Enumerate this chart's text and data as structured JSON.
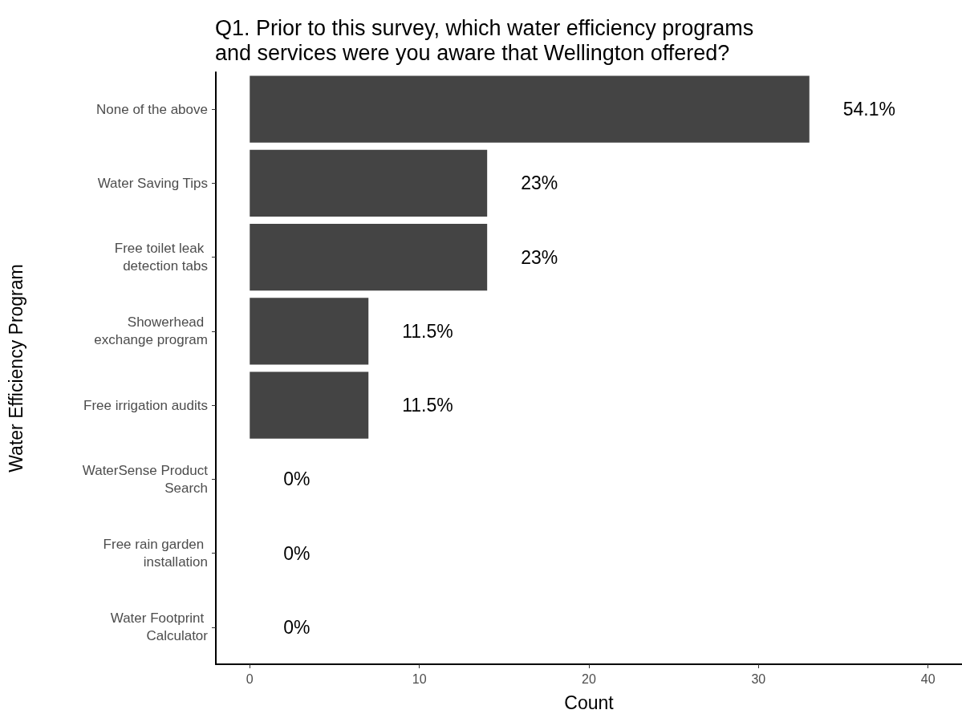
{
  "chart_data": {
    "type": "bar",
    "orientation": "horizontal",
    "title": "Q1. Prior to this survey, which water efficiency programs and services were you aware that Wellington offered?",
    "xlabel": "Count",
    "ylabel": "Water Efficiency Program",
    "categories": [
      "None of the above",
      "Water Saving Tips",
      "Free toilet leak detection tabs",
      "Showerhead exchange program",
      "Free irrigation audits",
      "WaterSense Product Search",
      "Free rain garden installation",
      "Water Footprint Calculator"
    ],
    "values": [
      33,
      14,
      14,
      7,
      7,
      0,
      0,
      0
    ],
    "annotations": [
      {
        "text": "54.1%",
        "x": 33,
        "y": "None of the above"
      },
      {
        "text": "23%",
        "x": 14,
        "y": "Water Saving Tips"
      },
      {
        "text": "23%",
        "x": 14,
        "y": "Free toilet leak detection tabs"
      },
      {
        "text": "11.5%",
        "x": 7,
        "y": "Showerhead exchange program"
      },
      {
        "text": "11.5%",
        "x": 7,
        "y": "Free irrigation audits"
      },
      {
        "text": "0%",
        "x": 0,
        "y": "WaterSense Product Search"
      },
      {
        "text": "0%",
        "x": 0,
        "y": "Free rain garden installation"
      },
      {
        "text": "0%",
        "x": 0,
        "y": "Water Footprint Calculator"
      }
    ],
    "color": "#444444",
    "xlim": [
      -2,
      42
    ],
    "xticks": [
      0,
      10,
      20,
      30,
      40
    ],
    "grid": false
  }
}
